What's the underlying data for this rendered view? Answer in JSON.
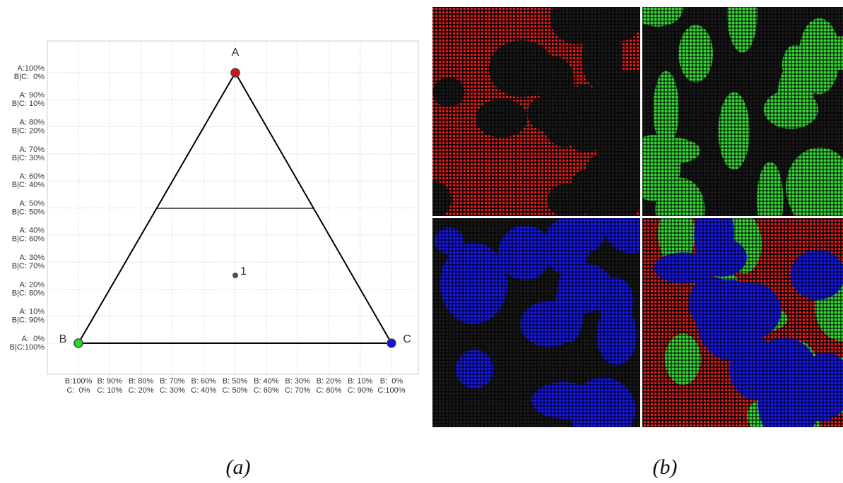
{
  "panel_a": {
    "vertices": [
      "A",
      "B",
      "C"
    ],
    "point_label": "1",
    "left_labels": [
      [
        "A:100%",
        "B|C:  0%"
      ],
      [
        "A: 90%",
        "B|C: 10%"
      ],
      [
        "A: 80%",
        "B|C: 20%"
      ],
      [
        "A: 70%",
        "B|C: 30%"
      ],
      [
        "A: 60%",
        "B|C: 40%"
      ],
      [
        "A: 50%",
        "B|C: 50%"
      ],
      [
        "A: 40%",
        "B|C: 60%"
      ],
      [
        "A: 30%",
        "B|C: 70%"
      ],
      [
        "A: 20%",
        "B|C: 80%"
      ],
      [
        "A: 10%",
        "B|C: 90%"
      ],
      [
        "A:  0%",
        "B|C:100%"
      ]
    ],
    "bottom_labels": [
      [
        "B:100%",
        "C:  0%"
      ],
      [
        "B: 90%",
        "C: 10%"
      ],
      [
        "B: 80%",
        "C: 20%"
      ],
      [
        "B: 70%",
        "C: 30%"
      ],
      [
        "B: 60%",
        "C: 40%"
      ],
      [
        "B: 50%",
        "C: 50%"
      ],
      [
        "B: 40%",
        "C: 60%"
      ],
      [
        "B: 30%",
        "C: 70%"
      ],
      [
        "B: 20%",
        "C: 80%"
      ],
      [
        "B: 10%",
        "C: 90%"
      ],
      [
        "B:  0%",
        "C:100%"
      ]
    ],
    "caption": "(a)"
  },
  "panel_b": {
    "caption": "(b)"
  }
}
